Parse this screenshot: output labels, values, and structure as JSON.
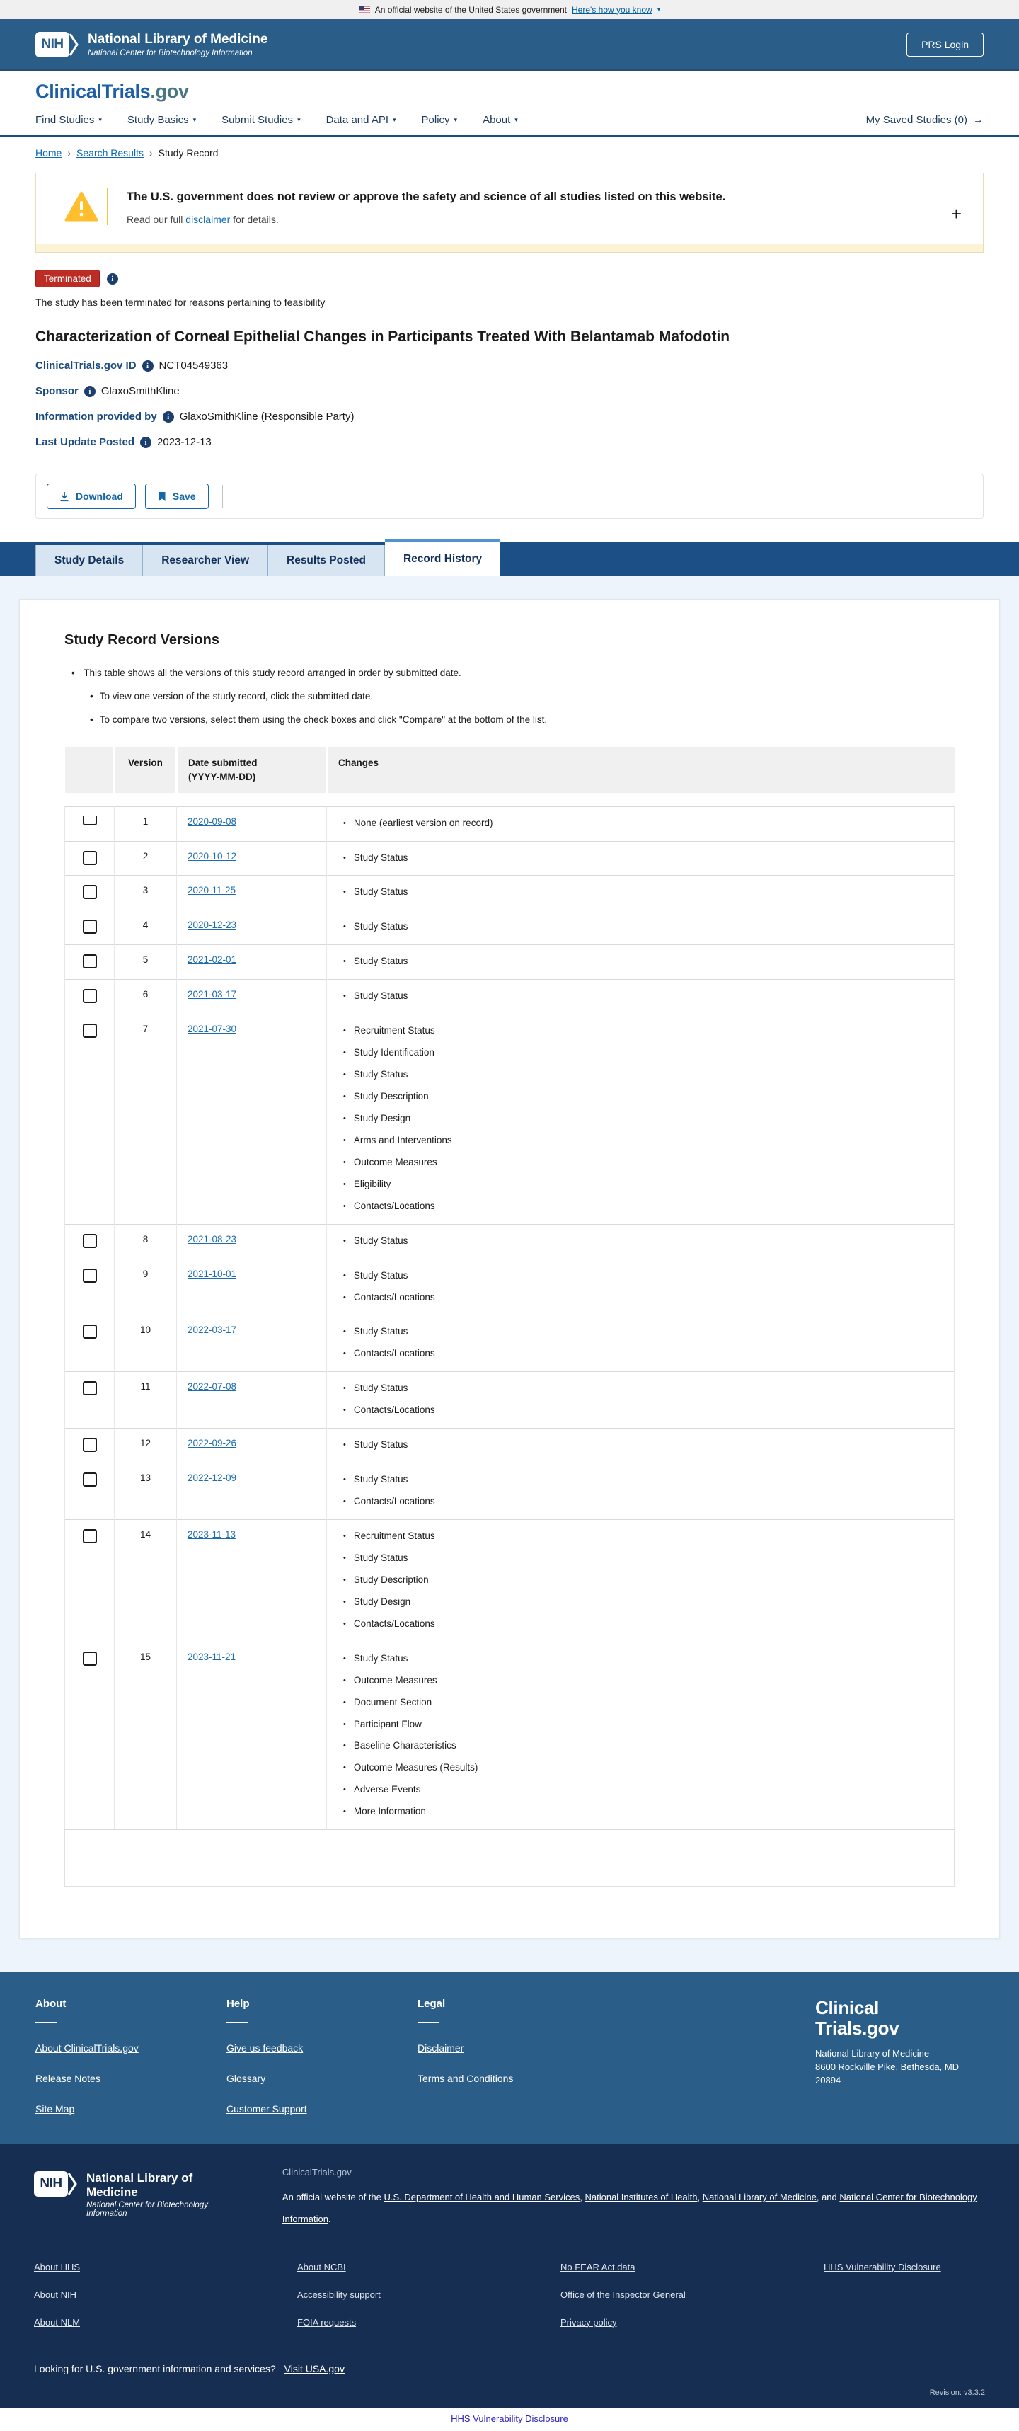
{
  "banner": {
    "text": "An official website of the United States government",
    "link": "Here's how you know",
    "chevron": "▾"
  },
  "header": {
    "logo_acronym": "NIH",
    "title": "National Library of Medicine",
    "subtitle": "National Center for Biotechnology Information",
    "login_label": "PRS Login"
  },
  "nav": {
    "logo_main": "ClinicalTrials",
    "logo_suffix": ".gov",
    "items": [
      "Find Studies",
      "Study Basics",
      "Submit Studies",
      "Data and API",
      "Policy",
      "About"
    ],
    "caret": "▾",
    "saved_label": "My Saved Studies (0)",
    "saved_arrow": "→"
  },
  "breadcrumb": {
    "separator": "›",
    "items": [
      {
        "label": "Home",
        "link": true
      },
      {
        "label": "Search Results",
        "link": true
      },
      {
        "label": "Study Record",
        "link": false
      }
    ]
  },
  "alert": {
    "heading": "The U.S. government does not review or approve the safety and science of all studies listed on this website.",
    "body_prefix": "Read our full ",
    "link": "disclaimer",
    "body_suffix": " for details.",
    "expand": "+"
  },
  "study": {
    "status_badge": "Terminated",
    "status_note": "The study has been terminated for reasons pertaining to feasibility",
    "title": "Characterization of Corneal Epithelial Changes in Participants Treated With Belantamab Mafodotin",
    "meta": [
      {
        "label": "ClinicalTrials.gov ID",
        "value": "NCT04549363"
      },
      {
        "label": "Sponsor",
        "value": "GlaxoSmithKline"
      },
      {
        "label": "Information provided by",
        "value": "GlaxoSmithKline (Responsible Party)"
      },
      {
        "label": "Last Update Posted",
        "value": "2023-12-13"
      }
    ]
  },
  "actions": {
    "download_label": "Download",
    "save_label": "Save"
  },
  "tabs": {
    "items": [
      {
        "label": "Study Details",
        "active": false
      },
      {
        "label": "Researcher View",
        "active": false
      },
      {
        "label": "Results Posted",
        "active": false
      },
      {
        "label": "Record History",
        "active": true
      }
    ]
  },
  "versions": {
    "heading": "Study Record Versions",
    "intro": "This table shows all the versions of this study record arranged in order by submitted date.",
    "sub_bullets": [
      "To view one version of the study record, click the submitted date.",
      "To compare two versions, select them using the check boxes and click \"Compare\" at the bottom of the list."
    ],
    "columns": {
      "version": "Version",
      "date_line1": "Date submitted",
      "date_line2": "(YYYY-MM-DD)",
      "changes": "Changes"
    },
    "rows": [
      {
        "version": "1",
        "date": "2020-09-08",
        "changes": [
          "None (earliest version on record)"
        ]
      },
      {
        "version": "2",
        "date": "2020-10-12",
        "changes": [
          "Study Status"
        ]
      },
      {
        "version": "3",
        "date": "2020-11-25",
        "changes": [
          "Study Status"
        ]
      },
      {
        "version": "4",
        "date": "2020-12-23",
        "changes": [
          "Study Status"
        ]
      },
      {
        "version": "5",
        "date": "2021-02-01",
        "changes": [
          "Study Status"
        ]
      },
      {
        "version": "6",
        "date": "2021-03-17",
        "changes": [
          "Study Status"
        ]
      },
      {
        "version": "7",
        "date": "2021-07-30",
        "changes": [
          "Recruitment Status",
          "Study Identification",
          "Study Status",
          "Study Description",
          "Study Design",
          "Arms and Interventions",
          "Outcome Measures",
          "Eligibility",
          "Contacts/Locations"
        ]
      },
      {
        "version": "8",
        "date": "2021-08-23",
        "changes": [
          "Study Status"
        ]
      },
      {
        "version": "9",
        "date": "2021-10-01",
        "changes": [
          "Study Status",
          "Contacts/Locations"
        ]
      },
      {
        "version": "10",
        "date": "2022-03-17",
        "changes": [
          "Study Status",
          "Contacts/Locations"
        ]
      },
      {
        "version": "11",
        "date": "2022-07-08",
        "changes": [
          "Study Status",
          "Contacts/Locations"
        ]
      },
      {
        "version": "12",
        "date": "2022-09-26",
        "changes": [
          "Study Status"
        ]
      },
      {
        "version": "13",
        "date": "2022-12-09",
        "changes": [
          "Study Status",
          "Contacts/Locations"
        ]
      },
      {
        "version": "14",
        "date": "2023-11-13",
        "changes": [
          "Recruitment Status",
          "Study Status",
          "Study Description",
          "Study Design",
          "Contacts/Locations"
        ]
      },
      {
        "version": "15",
        "date": "2023-11-21",
        "changes": [
          "Study Status",
          "Outcome Measures",
          "Document Section",
          "Participant Flow",
          "Baseline Characteristics",
          "Outcome Measures (Results)",
          "Adverse Events",
          "More Information"
        ]
      }
    ]
  },
  "footer": {
    "columns": [
      {
        "heading": "About",
        "links": [
          "About ClinicalTrials.gov",
          "Release Notes",
          "Site Map"
        ]
      },
      {
        "heading": "Help",
        "links": [
          "Give us feedback",
          "Glossary",
          "Customer Support"
        ]
      },
      {
        "heading": "Legal",
        "links": [
          "Disclaimer",
          "Terms and Conditions"
        ]
      }
    ],
    "logo_line1": "Clinical",
    "logo_line2": "Trials.gov",
    "address_lines": [
      "National Library of Medicine",
      "8600 Rockville Pike, Bethesda, MD",
      "20894"
    ]
  },
  "nih_footer": {
    "logo_acronym": "NIH",
    "title": "National Library of Medicine",
    "subtitle": "National Center for Biotechnology Information",
    "site": "ClinicalTrials.gov",
    "official_prefix": "An official website of the ",
    "official_links": [
      "U.S. Department of Health and Human Services",
      "National Institutes of Health",
      "National Library of Medicine",
      "National Center for Biotechnology Information"
    ],
    "official_separators": [
      ", ",
      ", ",
      ", and "
    ],
    "official_suffix": ".",
    "link_columns": [
      [
        "About HHS",
        "About NIH",
        "About NLM"
      ],
      [
        "About NCBI",
        "Accessibility support",
        "FOIA requests"
      ],
      [
        "No FEAR Act data",
        "Office of the Inspector General",
        "Privacy policy"
      ],
      [
        "HHS Vulnerability Disclosure"
      ]
    ],
    "usa_text": "Looking for U.S. government information and services?",
    "usa_link": "Visit USA.gov",
    "revision": "Revision: v3.3.2"
  },
  "bottom": {
    "link": "HHS Vulnerability Disclosure"
  },
  "colors": {
    "header_blue": "#2a5d87",
    "tab_blue": "#1d4f87",
    "badge_red": "#bc2c25",
    "link_blue": "#0b67b2",
    "warning_gold": "#ffbe2e",
    "footer_navy": "#162e51"
  }
}
